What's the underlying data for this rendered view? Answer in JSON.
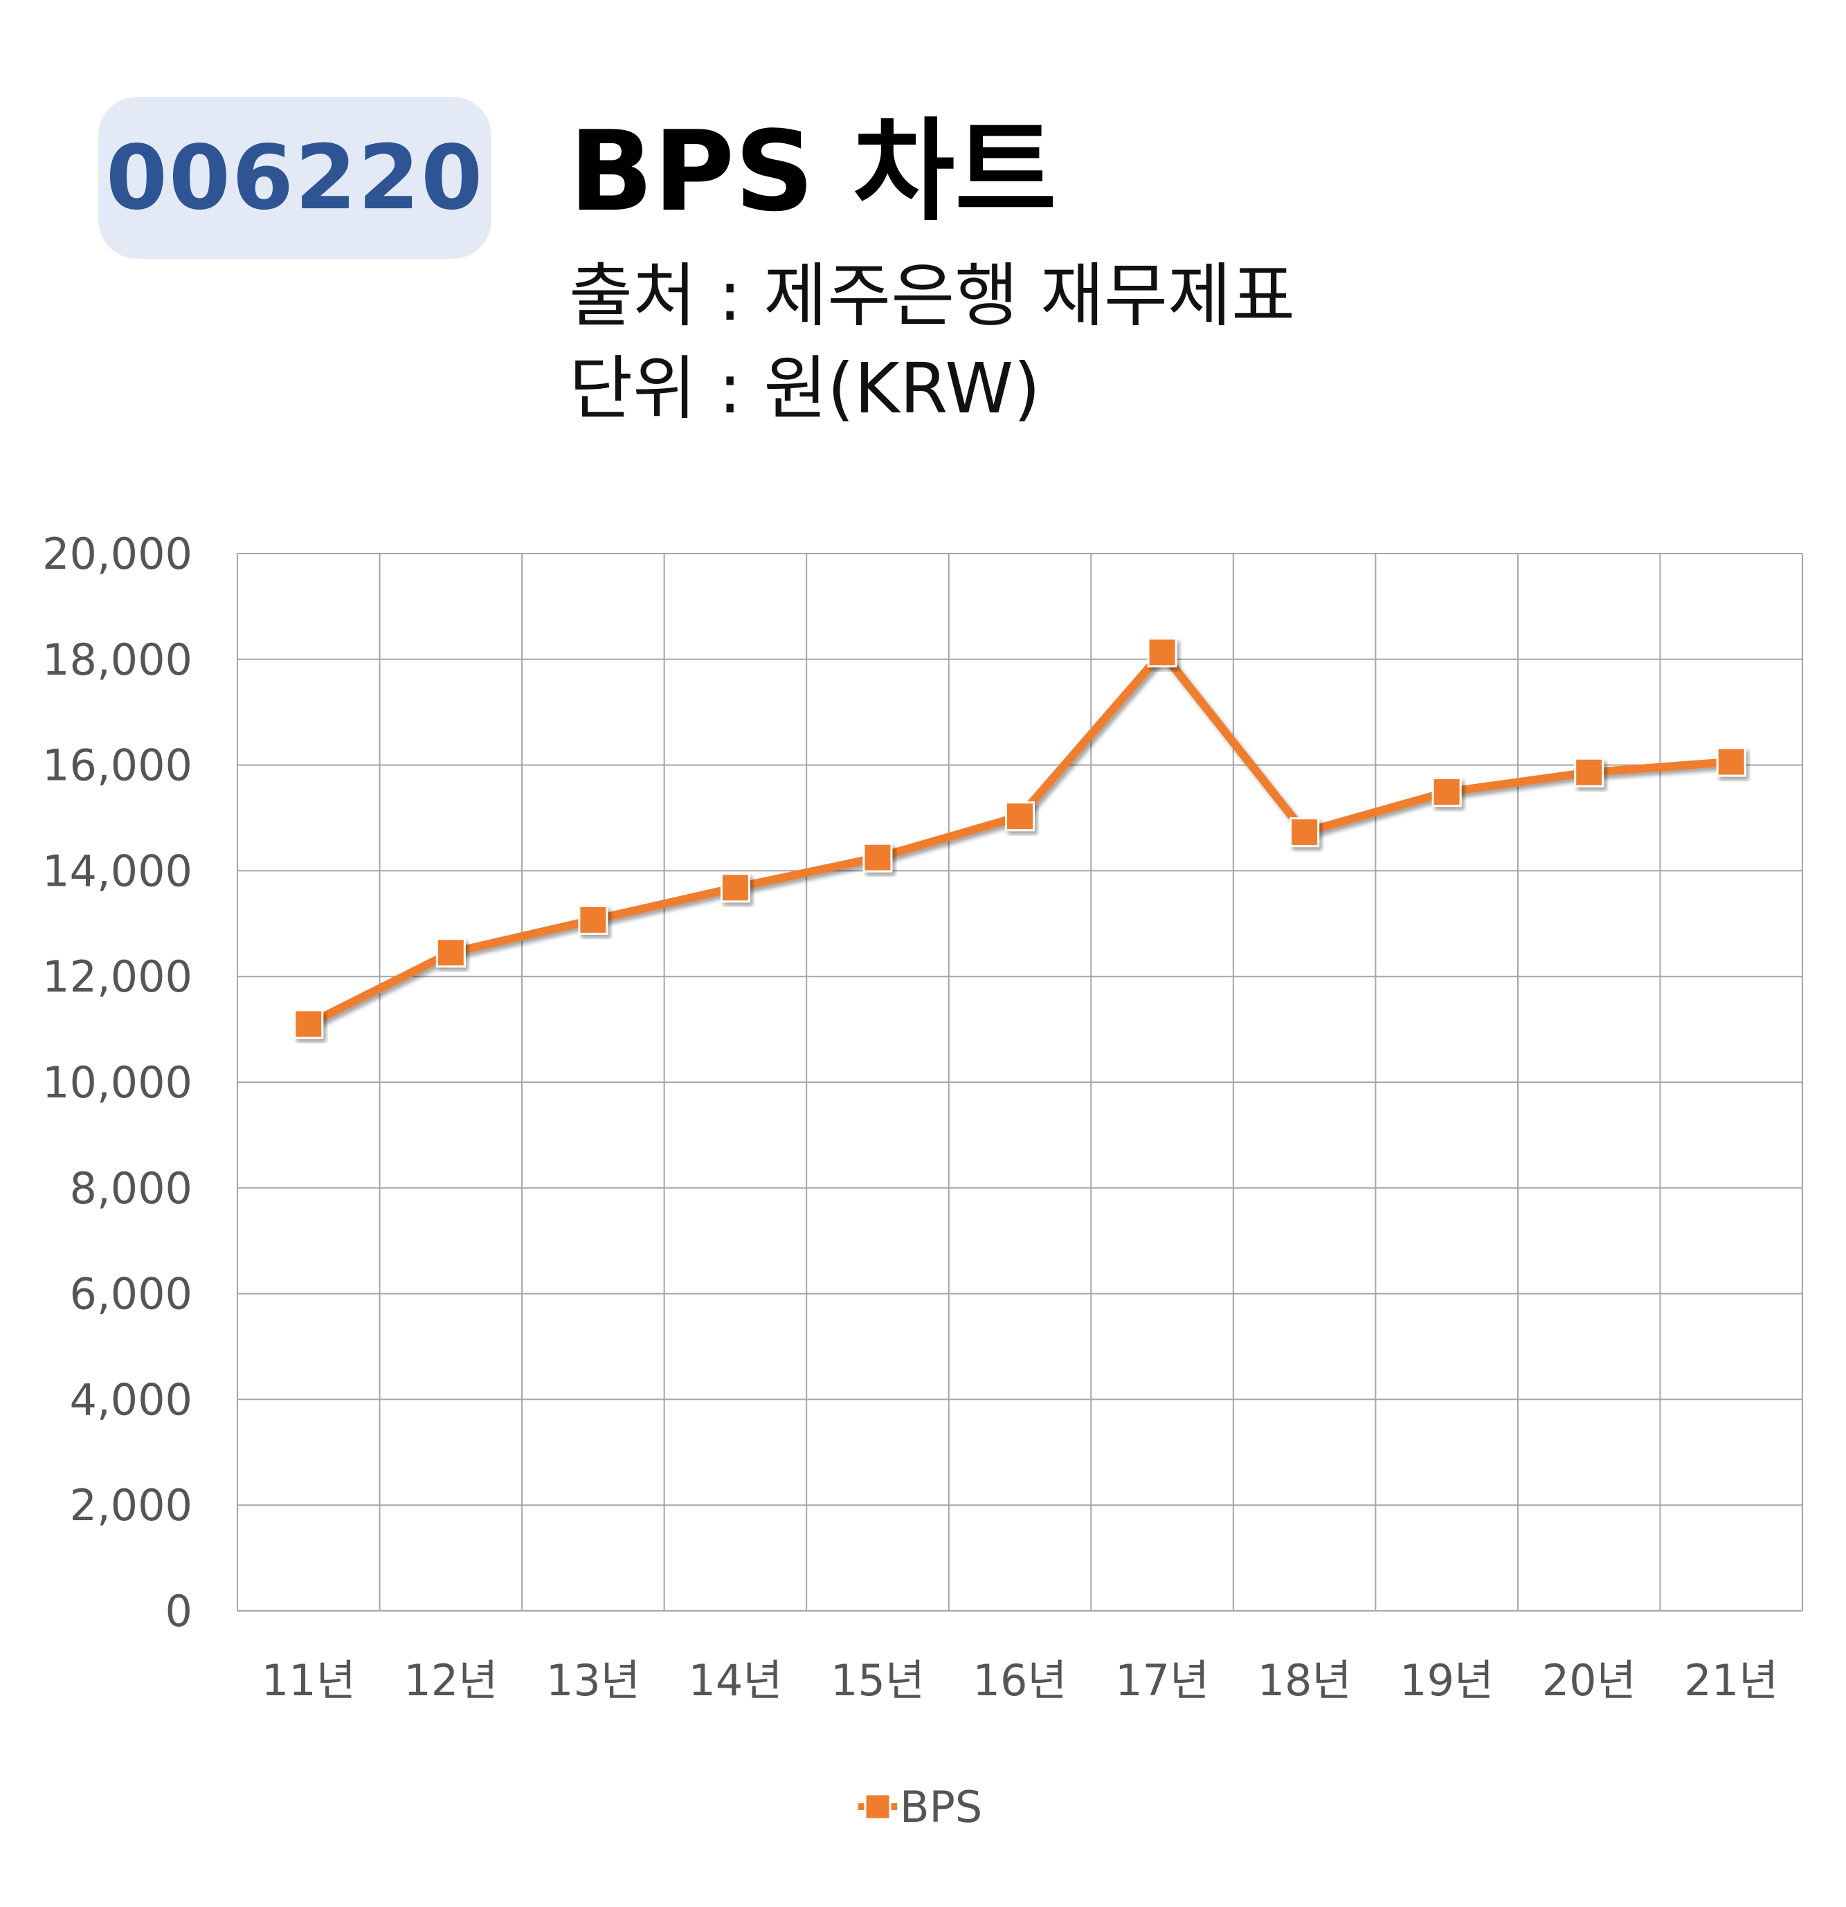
{
  "header": {
    "code": "006220",
    "title": "BPS 차트",
    "source": "출처 : 제주은행 재무제표",
    "unit": "단위 : 원(KRW)"
  },
  "colors": {
    "badge_bg": "#e3e9f5",
    "badge_text": "#2e5494",
    "series": "#ef7d2f",
    "grid": "#a6a6a6"
  },
  "chart_data": {
    "type": "line",
    "title": "BPS 차트",
    "xlabel": "",
    "ylabel": "",
    "categories": [
      "11년",
      "12년",
      "13년",
      "14년",
      "15년",
      "16년",
      "17년",
      "18년",
      "19년",
      "20년",
      "21년"
    ],
    "series": [
      {
        "name": "BPS",
        "values": [
          11100,
          12450,
          13070,
          13680,
          14250,
          15030,
          18130,
          14730,
          15490,
          15860,
          16060
        ]
      }
    ],
    "ylim": [
      0,
      20000
    ],
    "yticks": [
      0,
      2000,
      4000,
      6000,
      8000,
      10000,
      12000,
      14000,
      16000,
      18000,
      20000
    ],
    "ytick_labels": [
      "0",
      "2,000",
      "4,000",
      "6,000",
      "8,000",
      "10,000",
      "12,000",
      "14,000",
      "16,000",
      "18,000",
      "20,000"
    ],
    "grid": true,
    "legend": "bottom",
    "marker": "square"
  }
}
